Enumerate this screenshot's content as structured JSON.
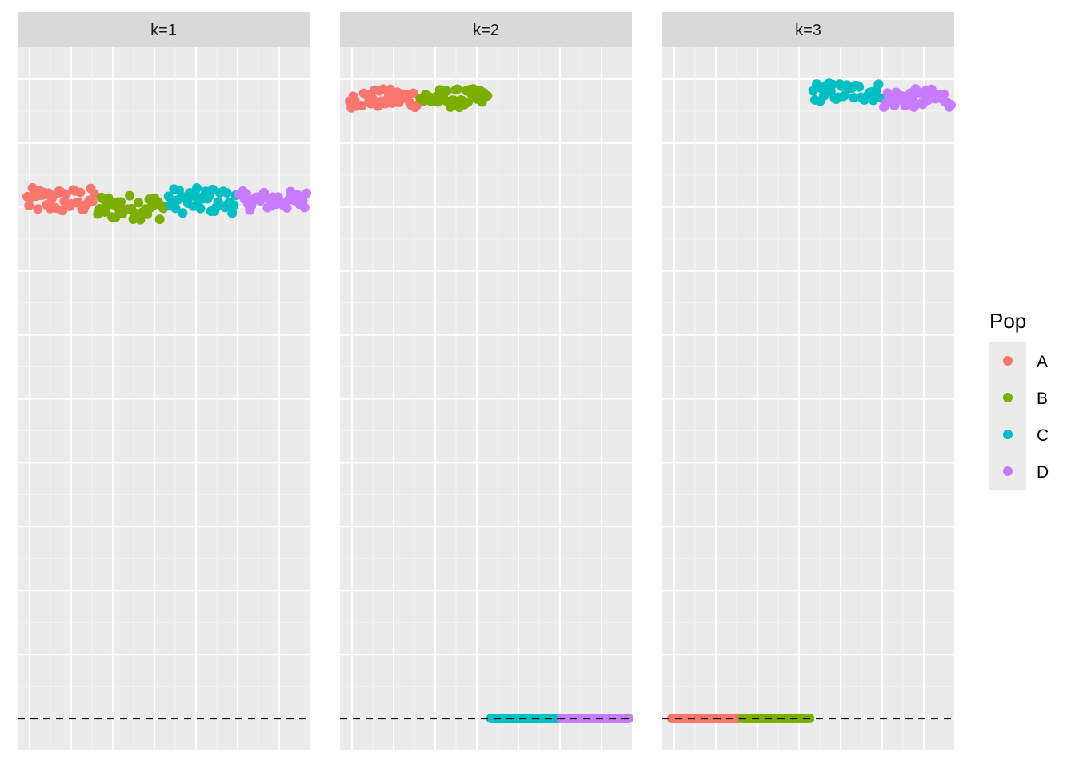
{
  "chart_data": {
    "type": "scatter",
    "facet_labels": [
      "k=1",
      "k=2",
      "k=3"
    ],
    "reference_line": {
      "y": 0,
      "style": "dashed"
    },
    "ylim": [
      -0.05,
      1.05
    ],
    "x_per_population": 20,
    "grid": true,
    "legend": {
      "title": "Pop",
      "placement": "right",
      "entries": [
        {
          "name": "A",
          "color": "#F8766D"
        },
        {
          "name": "B",
          "color": "#7CAE00"
        },
        {
          "name": "C",
          "color": "#00BFC4"
        },
        {
          "name": "D",
          "color": "#C77CFF"
        }
      ]
    },
    "panels": [
      {
        "label": "k=1",
        "populations": {
          "A": {
            "x_range": [
              1,
              20
            ],
            "y_center": 0.81,
            "spread": 0.02
          },
          "B": {
            "x_range": [
              21,
              40
            ],
            "y_center": 0.8,
            "spread": 0.02
          },
          "C": {
            "x_range": [
              41,
              60
            ],
            "y_center": 0.81,
            "spread": 0.02
          },
          "D": {
            "x_range": [
              61,
              80
            ],
            "y_center": 0.81,
            "spread": 0.015
          }
        }
      },
      {
        "label": "k=2",
        "populations": {
          "A": {
            "x_range": [
              1,
              20
            ],
            "y_center": 0.97,
            "spread": 0.015
          },
          "B": {
            "x_range": [
              21,
              40
            ],
            "y_center": 0.97,
            "spread": 0.015
          },
          "C": {
            "x_range": [
              41,
              60
            ],
            "y_center": 0.0,
            "spread": 0
          },
          "D": {
            "x_range": [
              61,
              80
            ],
            "y_center": 0.0,
            "spread": 0
          }
        }
      },
      {
        "label": "k=3",
        "populations": {
          "A": {
            "x_range": [
              1,
              20
            ],
            "y_center": 0.0,
            "spread": 0
          },
          "B": {
            "x_range": [
              21,
              40
            ],
            "y_center": 0.0,
            "spread": 0
          },
          "C": {
            "x_range": [
              41,
              60
            ],
            "y_center": 0.98,
            "spread": 0.015
          },
          "D": {
            "x_range": [
              61,
              80
            ],
            "y_center": 0.97,
            "spread": 0.015
          }
        }
      }
    ]
  }
}
